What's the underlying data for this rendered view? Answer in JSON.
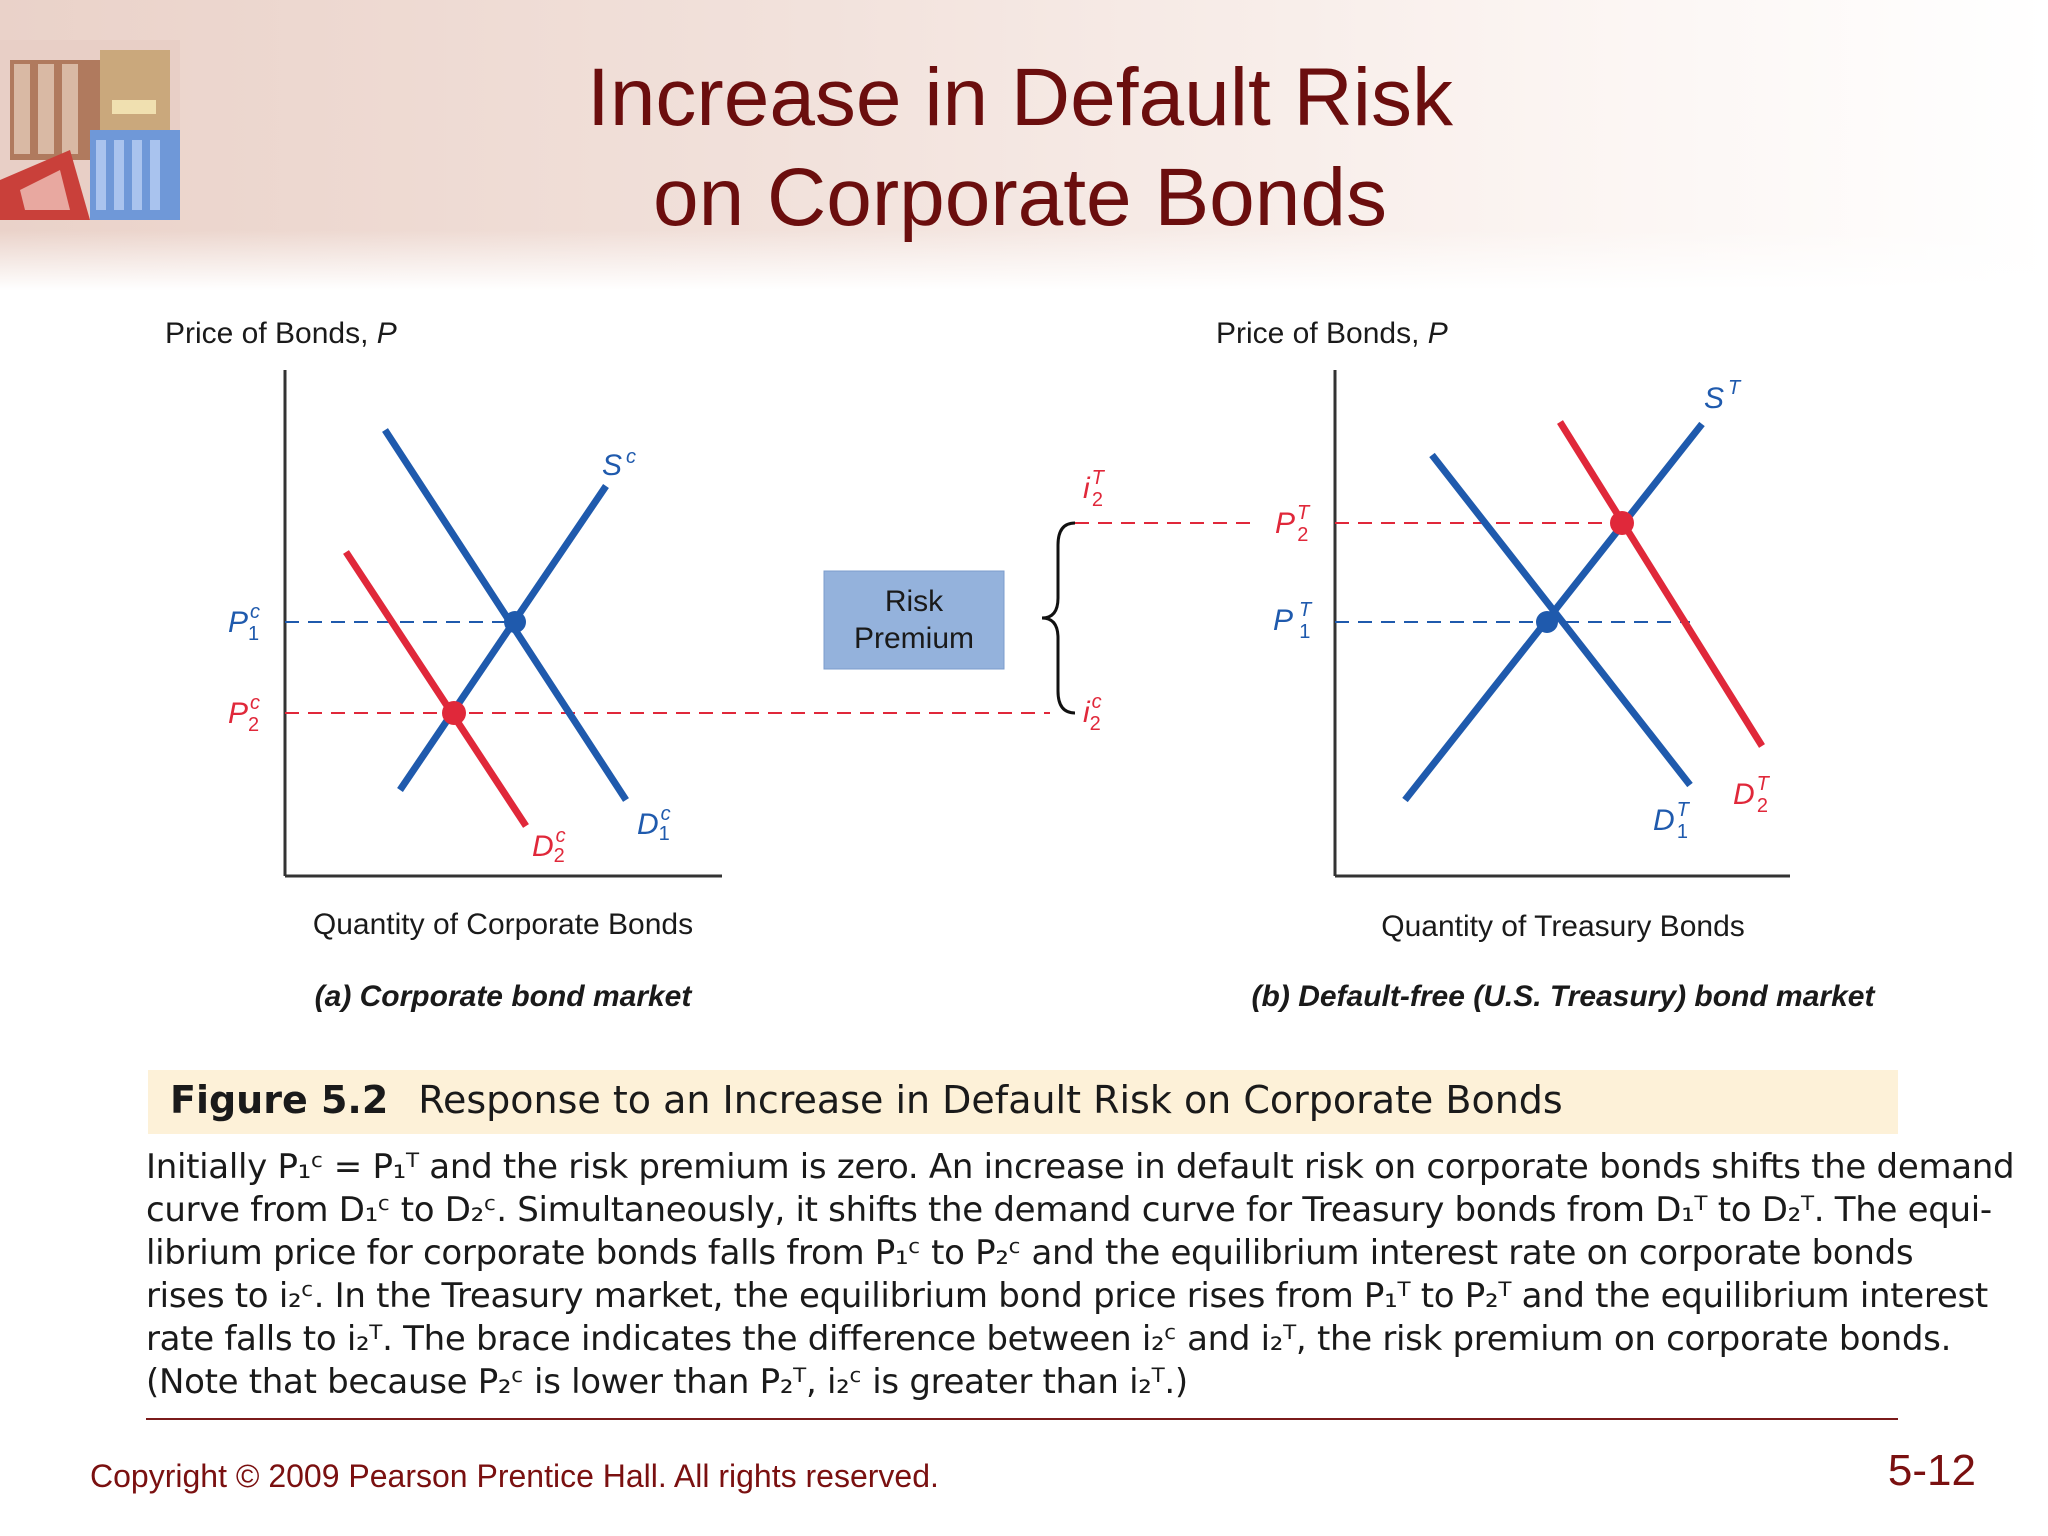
{
  "slide": {
    "title_line1": "Increase in Default Risk",
    "title_line2": "on Corporate Bonds",
    "copyright": "Copyright © 2009 Pearson Prentice Hall. All rights reserved.",
    "slide_number": "5-12"
  },
  "colors": {
    "title": "#6b0e0e",
    "curve_blue": "#1f5aad",
    "curve_red": "#e0283a",
    "risk_box": "#94b2dc",
    "caption_band": "#fdf1d8"
  },
  "panel_a": {
    "y_axis_label": "Price of Bonds, ",
    "y_axis_var": "P",
    "x_axis_label": "Quantity of Corporate Bonds",
    "subtitle": "(a) Corporate bond market",
    "supply": "S",
    "supply_sup": "c",
    "demand1": "D",
    "demand1_sup": "c",
    "demand1_sub": "1",
    "demand2": "D",
    "demand2_sup": "c",
    "demand2_sub": "2",
    "price1": "P",
    "price1_sup": "c",
    "price1_sub": "1",
    "price2": "P",
    "price2_sup": "c",
    "price2_sub": "2"
  },
  "panel_b": {
    "y_axis_label": "Price of Bonds, ",
    "y_axis_var": "P",
    "x_axis_label": "Quantity of Treasury Bonds",
    "subtitle": "(b) Default-free (U.S. Treasury) bond market",
    "supply": "S",
    "supply_sup": "T",
    "demand1": "D",
    "demand1_sup": "T",
    "demand1_sub": "1",
    "demand2": "D",
    "demand2_sup": "T",
    "demand2_sub": "2",
    "price1": "P",
    "price1_sup": "T",
    "price1_sub": "1",
    "price2": "P",
    "price2_sup": "T",
    "price2_sub": "2"
  },
  "brace": {
    "rate_top": "i",
    "rate_top_sup": "T",
    "rate_top_sub": "2",
    "rate_bottom": "i",
    "rate_bottom_sup": "c",
    "rate_bottom_sub": "2"
  },
  "risk_premium": {
    "line1": "Risk",
    "line2": "Premium"
  },
  "figure": {
    "number": "Figure 5.2",
    "title": "Response to an Increase in Default Risk on Corporate Bonds",
    "caption_lines": [
      "Initially P₁ᶜ = P₁ᵀ and the risk premium is zero. An increase in default risk on corporate bonds shifts the demand",
      "curve from D₁ᶜ to D₂ᶜ. Simultaneously, it shifts the demand curve for Treasury bonds from D₁ᵀ to D₂ᵀ. The equi-",
      "librium price for corporate bonds falls from P₁ᶜ to P₂ᶜ and the equilibrium interest rate on corporate bonds",
      "rises to i₂ᶜ. In the Treasury market, the equilibrium bond price rises from P₁ᵀ to P₂ᵀ and the equilibrium interest",
      "rate falls to i₂ᵀ. The brace indicates the difference between i₂ᶜ and i₂ᵀ, the risk premium on corporate bonds.",
      "(Note that because P₂ᶜ is lower than P₂ᵀ, i₂ᶜ is greater than i₂ᵀ.)"
    ]
  }
}
